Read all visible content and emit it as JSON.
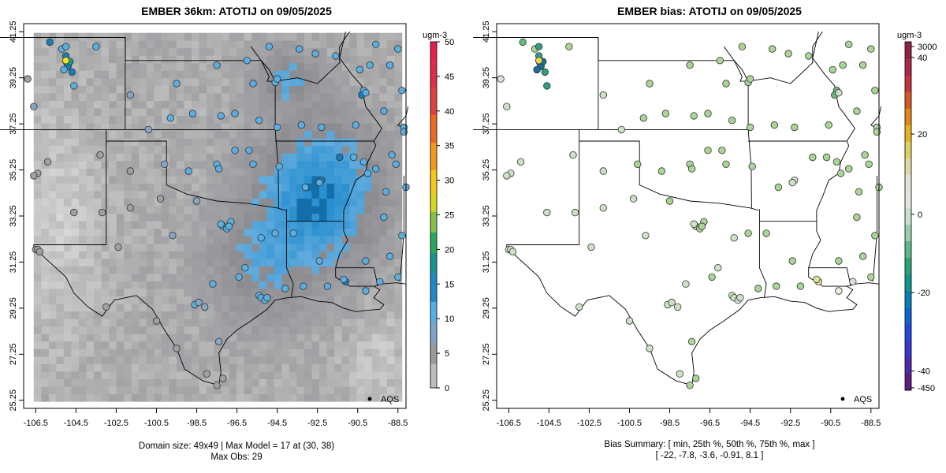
{
  "left_panel": {
    "title": "EMBER 36km: ATOTIJ on 09/05/2025",
    "footer_line1": "Domain size: 49x49 | Max Model = 17 at (30, 38)",
    "footer_line2": "Max Obs: 29",
    "legend_text": "AQS",
    "colorbar": {
      "unit": "ugm-3",
      "ticks": [
        "0",
        "5",
        "10",
        "15",
        "20",
        "25",
        "30",
        "35",
        "40",
        "45",
        "50"
      ],
      "values": [
        0,
        5,
        10,
        15,
        20,
        25,
        30,
        35,
        40,
        45,
        50
      ]
    }
  },
  "right_panel": {
    "title": "EMBER bias: ATOTIJ on 09/05/2025",
    "footer_line1": "Bias Summary: [ min, 25th %, 50th %, 75th %, max ]",
    "footer_line2": "[ -22,   -7.8,   -3.6,   -0.91,   8.1 ]",
    "legend_text": "AQS",
    "colorbar": {
      "unit": "ugm-3",
      "ticks": [
        "-450",
        "-40",
        "-20",
        "0",
        "20",
        "40",
        "3000"
      ],
      "values": [
        -450,
        -40,
        -20,
        0,
        20,
        40,
        3000
      ]
    }
  },
  "axes": {
    "x_ticks": [
      "-106.5",
      "-104.5",
      "-102.5",
      "-100.5",
      "-98.5",
      "-96.5",
      "-94.5",
      "-92.5",
      "-90.5",
      "-88.5"
    ],
    "x_values": [
      -106.5,
      -104.5,
      -102.5,
      -100.5,
      -98.5,
      -96.5,
      -94.5,
      -92.5,
      -90.5,
      -88.5
    ],
    "y_ticks": [
      "25.25",
      "27.25",
      "29.25",
      "31.25",
      "33.25",
      "35.25",
      "37.25",
      "39.25",
      "41.25"
    ],
    "y_values": [
      25.25,
      27.25,
      29.25,
      31.25,
      33.25,
      35.25,
      37.25,
      39.25,
      41.25
    ],
    "xlim": [
      -107.1,
      -88.1
    ],
    "ylim": [
      24.9,
      41.6
    ]
  },
  "colors": {
    "marker_stroke": "#333333",
    "border": "#000000"
  }
}
